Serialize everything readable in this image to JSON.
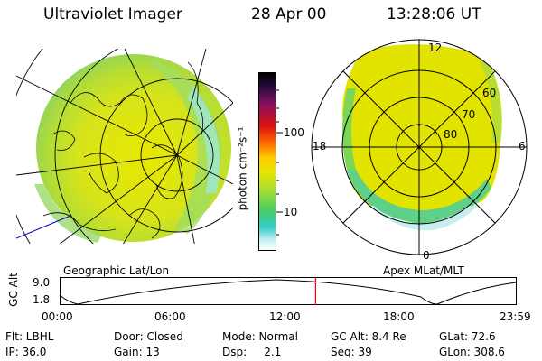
{
  "header": {
    "title": "Ultraviolet Imager",
    "date": "28 Apr 00",
    "time": "13:28:06 UT"
  },
  "colorbar": {
    "axis_label": "photon cm⁻²s⁻¹",
    "ticks": [
      "100",
      "10"
    ]
  },
  "left_panel": {
    "caption": "Geographic Lat/Lon"
  },
  "right_panel": {
    "caption": "Apex MLat/MLT",
    "mlt_labels": [
      "12",
      "18",
      "6",
      "0"
    ],
    "lat_labels": [
      "60",
      "70",
      "80"
    ]
  },
  "timeline": {
    "ylabel": "GC Alt",
    "y_ticks": [
      "9.0",
      "1.8"
    ],
    "x_ticks": [
      "00:00",
      "06:00",
      "12:00",
      "18:00",
      "23:59"
    ],
    "current_time_hours": 13.47
  },
  "info": {
    "row1": [
      "Flt: LBHL",
      "Door: Closed",
      "Mode: Normal",
      "GC Alt: 8.4 Re",
      "GLat: 72.6"
    ],
    "row2": [
      "IP: 36.0",
      "Gain: 13",
      "Dsp:     2.1",
      "Seq: 39",
      "GLon: 308.6"
    ]
  },
  "colors": {
    "aurora_high": "#e6e600",
    "aurora_mid": "#aadd33",
    "aurora_low": "#44cc88",
    "aurora_faint": "#77dddd",
    "marker": "#ff0000"
  }
}
